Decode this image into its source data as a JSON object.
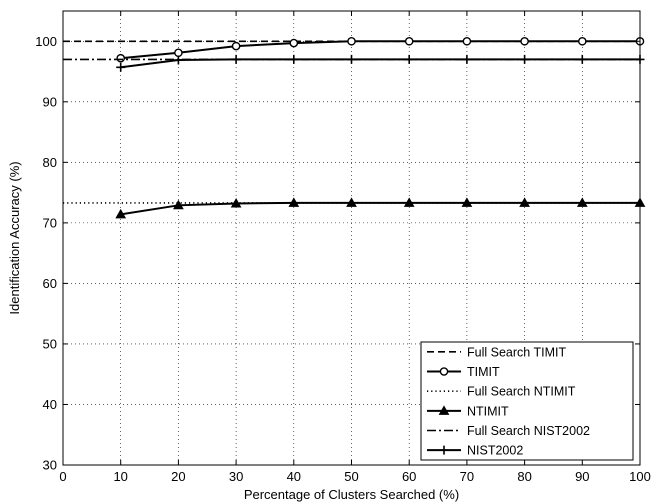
{
  "chart_data": {
    "type": "line",
    "title": "",
    "xlabel": "Percentage of Clusters Searched (%)",
    "ylabel": "Identification Accuracy (%)",
    "xlim": [
      0,
      100
    ],
    "ylim": [
      30,
      105
    ],
    "xticks": [
      0,
      10,
      20,
      30,
      40,
      50,
      60,
      70,
      80,
      90,
      100
    ],
    "yticks": [
      30,
      40,
      50,
      60,
      70,
      80,
      90,
      100
    ],
    "grid": true,
    "legend_position": "bottom-right",
    "series": [
      {
        "name": "Full Search TIMIT",
        "style": "dashed",
        "marker": "none",
        "x": [
          0,
          100
        ],
        "y": [
          100,
          100
        ]
      },
      {
        "name": "TIMIT",
        "style": "solid",
        "marker": "circle",
        "x": [
          10,
          20,
          30,
          40,
          50,
          60,
          70,
          80,
          90,
          100
        ],
        "y": [
          97.2,
          98.1,
          99.2,
          99.7,
          100,
          100,
          100,
          100,
          100,
          100
        ]
      },
      {
        "name": "Full Search NTIMIT",
        "style": "dotted",
        "marker": "none",
        "x": [
          0,
          100
        ],
        "y": [
          73.3,
          73.3
        ]
      },
      {
        "name": "NTIMIT",
        "style": "solid",
        "marker": "triangle",
        "x": [
          10,
          20,
          30,
          40,
          50,
          60,
          70,
          80,
          90,
          100
        ],
        "y": [
          71.4,
          72.9,
          73.2,
          73.3,
          73.3,
          73.3,
          73.3,
          73.3,
          73.3,
          73.3
        ]
      },
      {
        "name": "Full Search NIST2002",
        "style": "dashdot",
        "marker": "none",
        "x": [
          0,
          100
        ],
        "y": [
          97,
          97
        ]
      },
      {
        "name": "NIST2002",
        "style": "solid",
        "marker": "plus",
        "x": [
          10,
          20,
          30,
          40,
          50,
          60,
          70,
          80,
          90,
          100
        ],
        "y": [
          95.7,
          96.9,
          97,
          97,
          97,
          97,
          97,
          97,
          97,
          97
        ]
      }
    ]
  }
}
